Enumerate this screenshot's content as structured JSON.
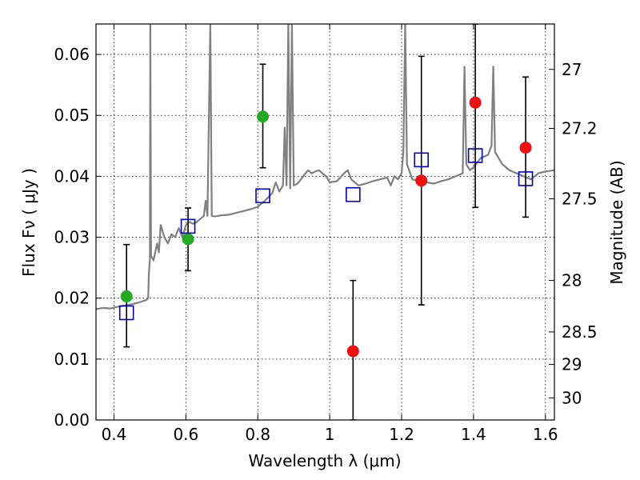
{
  "chart_data": {
    "type": "scatter",
    "title": "",
    "xlabel": "Wavelength  λ (μm)",
    "ylabel": "Flux  Fν  ( μJy )",
    "y2label": "Magnitude (AB)",
    "xlim": [
      0.35,
      1.625
    ],
    "ylim": [
      0.0,
      0.065
    ],
    "xticks": [
      {
        "value": 0.4,
        "label": "0.4"
      },
      {
        "value": 0.6,
        "label": "0.6"
      },
      {
        "value": 0.8,
        "label": "0.8"
      },
      {
        "value": 1.0,
        "label": "1"
      },
      {
        "value": 1.2,
        "label": "1.2"
      },
      {
        "value": 1.4,
        "label": "1.4"
      },
      {
        "value": 1.6,
        "label": "1.6"
      }
    ],
    "yticks": [
      {
        "value": 0.0,
        "label": "0.00"
      },
      {
        "value": 0.01,
        "label": "0.01"
      },
      {
        "value": 0.02,
        "label": "0.02"
      },
      {
        "value": 0.03,
        "label": "0.03"
      },
      {
        "value": 0.04,
        "label": "0.04"
      },
      {
        "value": 0.05,
        "label": "0.05"
      },
      {
        "value": 0.06,
        "label": "0.06"
      }
    ],
    "y2ticks": [
      {
        "value": 27.0,
        "label": "27"
      },
      {
        "value": 27.2,
        "label": "27.2"
      },
      {
        "value": 27.5,
        "label": "27.5"
      },
      {
        "value": 28.0,
        "label": "28"
      },
      {
        "value": 28.5,
        "label": "28.5"
      },
      {
        "value": 29.0,
        "label": "29"
      },
      {
        "value": 30.0,
        "label": "30"
      }
    ],
    "grid": true,
    "colors": {
      "spectrum": "#808080",
      "green": "#22aa22",
      "red": "#ee1111",
      "model": "#0000cc",
      "errorbar": "#000000"
    },
    "series": [
      {
        "marker": "green-circle",
        "points": [
          {
            "x": 0.435,
            "y": 0.0203,
            "err": [
              0.012,
              0.0288
            ]
          },
          {
            "x": 0.606,
            "y": 0.0297,
            "err": [
              0.0245,
              0.0348
            ]
          },
          {
            "x": 0.814,
            "y": 0.0498,
            "err": [
              0.0414,
              0.0584
            ]
          }
        ]
      },
      {
        "marker": "red-circle",
        "points": [
          {
            "x": 1.065,
            "y": 0.0113,
            "err": [
              0.0,
              0.0229
            ]
          },
          {
            "x": 1.255,
            "y": 0.0393,
            "err": [
              0.0189,
              0.0597
            ]
          },
          {
            "x": 1.405,
            "y": 0.0521,
            "err": [
              0.0349,
              0.065
            ]
          },
          {
            "x": 1.545,
            "y": 0.0447,
            "err": [
              0.0333,
              0.0563
            ]
          }
        ]
      },
      {
        "marker": "blue-open-square",
        "points": [
          {
            "x": 0.435,
            "y": 0.0176
          },
          {
            "x": 0.606,
            "y": 0.0318
          },
          {
            "x": 0.814,
            "y": 0.0368
          },
          {
            "x": 1.065,
            "y": 0.037
          },
          {
            "x": 1.255,
            "y": 0.0427
          },
          {
            "x": 1.405,
            "y": 0.0434
          },
          {
            "x": 1.545,
            "y": 0.0396
          }
        ]
      }
    ],
    "spectrum": [
      [
        0.35,
        0.0182
      ],
      [
        0.37,
        0.0184
      ],
      [
        0.39,
        0.0183
      ],
      [
        0.41,
        0.0186
      ],
      [
        0.43,
        0.0188
      ],
      [
        0.45,
        0.019
      ],
      [
        0.47,
        0.0193
      ],
      [
        0.49,
        0.0197
      ],
      [
        0.495,
        0.02
      ],
      [
        0.497,
        0.024
      ],
      [
        0.5,
        0.0265
      ],
      [
        0.501,
        0.065
      ],
      [
        0.503,
        0.027
      ],
      [
        0.51,
        0.0262
      ],
      [
        0.52,
        0.029
      ],
      [
        0.525,
        0.0275
      ],
      [
        0.53,
        0.032
      ],
      [
        0.54,
        0.03
      ],
      [
        0.55,
        0.029
      ],
      [
        0.56,
        0.0305
      ],
      [
        0.57,
        0.03
      ],
      [
        0.58,
        0.0315
      ],
      [
        0.59,
        0.03
      ],
      [
        0.6,
        0.032
      ],
      [
        0.61,
        0.0325
      ],
      [
        0.62,
        0.0322
      ],
      [
        0.63,
        0.0325
      ],
      [
        0.64,
        0.033
      ],
      [
        0.65,
        0.0335
      ],
      [
        0.655,
        0.036
      ],
      [
        0.66,
        0.0335
      ],
      [
        0.668,
        0.065
      ],
      [
        0.672,
        0.0335
      ],
      [
        0.68,
        0.0334
      ],
      [
        0.7,
        0.0336
      ],
      [
        0.72,
        0.0337
      ],
      [
        0.74,
        0.034
      ],
      [
        0.76,
        0.0343
      ],
      [
        0.78,
        0.0346
      ],
      [
        0.8,
        0.035
      ],
      [
        0.82,
        0.036
      ],
      [
        0.84,
        0.0372
      ],
      [
        0.85,
        0.039
      ],
      [
        0.86,
        0.0375
      ],
      [
        0.87,
        0.0385
      ],
      [
        0.875,
        0.048
      ],
      [
        0.88,
        0.0385
      ],
      [
        0.885,
        0.065
      ],
      [
        0.89,
        0.038
      ],
      [
        0.895,
        0.065
      ],
      [
        0.9,
        0.0385
      ],
      [
        0.91,
        0.0388
      ],
      [
        0.92,
        0.0395
      ],
      [
        0.93,
        0.0403
      ],
      [
        0.94,
        0.041
      ],
      [
        0.95,
        0.0405
      ],
      [
        0.96,
        0.0408
      ],
      [
        0.97,
        0.041
      ],
      [
        0.98,
        0.0405
      ],
      [
        0.99,
        0.04
      ],
      [
        1.0,
        0.039
      ],
      [
        1.02,
        0.0392
      ],
      [
        1.04,
        0.0405
      ],
      [
        1.05,
        0.041
      ],
      [
        1.06,
        0.0395
      ],
      [
        1.08,
        0.0385
      ],
      [
        1.1,
        0.0388
      ],
      [
        1.12,
        0.0392
      ],
      [
        1.14,
        0.0395
      ],
      [
        1.16,
        0.0398
      ],
      [
        1.17,
        0.0385
      ],
      [
        1.18,
        0.04
      ],
      [
        1.19,
        0.0395
      ],
      [
        1.2,
        0.0405
      ],
      [
        1.205,
        0.044
      ],
      [
        1.21,
        0.065
      ],
      [
        1.215,
        0.042
      ],
      [
        1.23,
        0.0395
      ],
      [
        1.25,
        0.0392
      ],
      [
        1.27,
        0.039
      ],
      [
        1.29,
        0.0388
      ],
      [
        1.31,
        0.0392
      ],
      [
        1.33,
        0.0395
      ],
      [
        1.35,
        0.04
      ],
      [
        1.37,
        0.0405
      ],
      [
        1.375,
        0.058
      ],
      [
        1.38,
        0.042
      ],
      [
        1.39,
        0.041
      ],
      [
        1.4,
        0.0415
      ],
      [
        1.42,
        0.043
      ],
      [
        1.44,
        0.0435
      ],
      [
        1.45,
        0.045
      ],
      [
        1.455,
        0.058
      ],
      [
        1.46,
        0.044
      ],
      [
        1.48,
        0.042
      ],
      [
        1.5,
        0.041
      ],
      [
        1.52,
        0.0405
      ],
      [
        1.54,
        0.04
      ],
      [
        1.56,
        0.0395
      ],
      [
        1.58,
        0.0405
      ],
      [
        1.6,
        0.0408
      ],
      [
        1.625,
        0.041
      ]
    ]
  }
}
